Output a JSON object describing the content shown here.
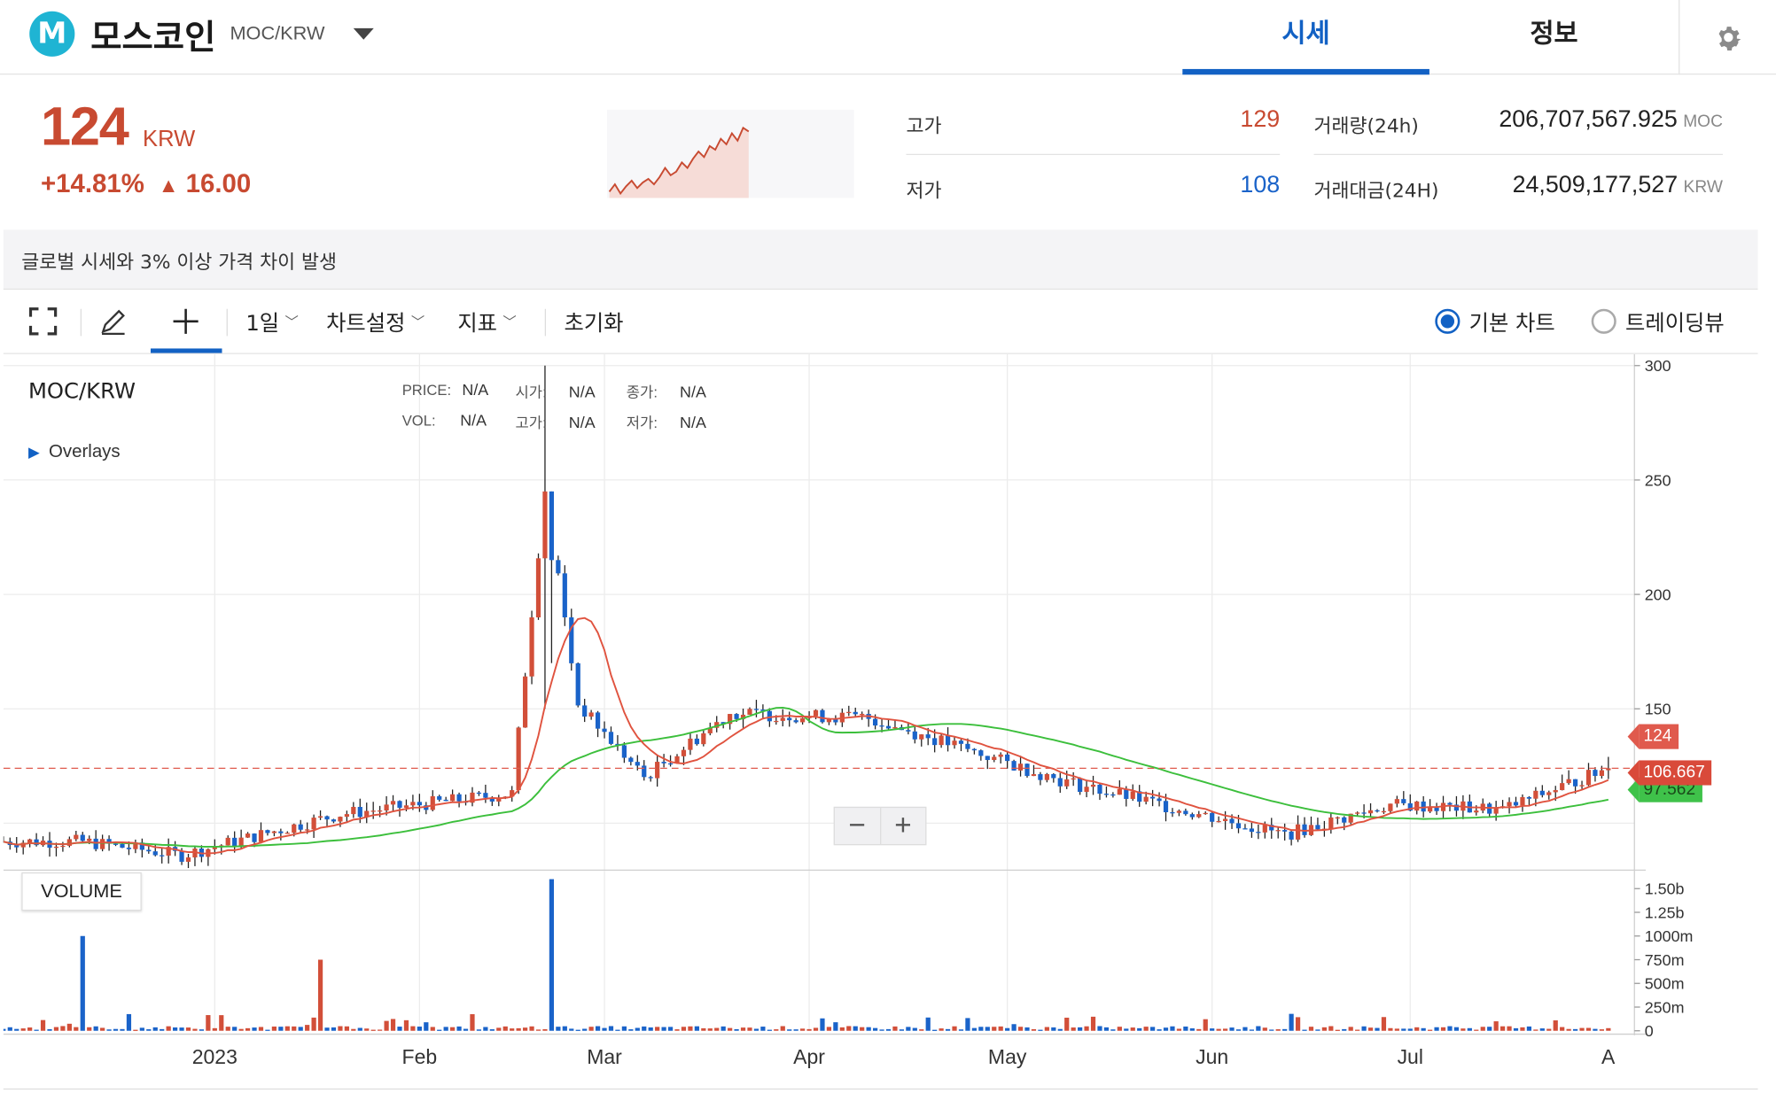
{
  "header": {
    "logo_letter": "M",
    "coin_name": "모스코인",
    "pair": "MOC/KRW",
    "tabs": [
      {
        "label": "시세",
        "active": true
      },
      {
        "label": "정보",
        "active": false
      }
    ]
  },
  "summary": {
    "price": "124",
    "price_unit": "KRW",
    "change_pct": "+14.81%",
    "change_arrow": "▲",
    "change_amount": "16.00",
    "high_label": "고가",
    "high_value": "129",
    "low_label": "저가",
    "low_value": "108",
    "volume_label": "거래량(24h)",
    "volume_value": "206,707,567.925",
    "volume_unit": "MOC",
    "amount_label": "거래대금(24H)",
    "amount_value": "24,509,177,527",
    "amount_unit": "KRW",
    "notice": "글로벌 시세와 3% 이상 가격 차이 발생",
    "sparkline": [
      105,
      109,
      104,
      108,
      111,
      107,
      110,
      112,
      109,
      113,
      118,
      114,
      116,
      121,
      118,
      123,
      127,
      124,
      130,
      128,
      134,
      131,
      137,
      133,
      140,
      138
    ]
  },
  "toolbar": {
    "interval": "1일",
    "chart_settings": "차트설정",
    "indicators": "지표",
    "reset": "초기화",
    "mode_basic": "기본 차트",
    "mode_tv": "트레이딩뷰",
    "selected_mode": "basic"
  },
  "chart": {
    "pair_label": "MOC/KRW",
    "overlays_label": "Overlays",
    "ohlc": {
      "price_key": "PRICE:",
      "price": "N/A",
      "open_key": "시가:",
      "open": "N/A",
      "close_key": "종가:",
      "close": "N/A",
      "vol_key": "VOL:",
      "vol": "N/A",
      "high_key": "고가:",
      "high": "N/A",
      "low_key": "저가:",
      "low": "N/A"
    },
    "volume_label": "VOLUME",
    "zoom_out": "−",
    "zoom_in": "+",
    "price_tags": {
      "last": "124",
      "ma_short": "106.667",
      "ma_long": "97.562"
    },
    "colors": {
      "up": "#d24f39",
      "down": "#1a63c9",
      "ma_short": "#e0533f",
      "ma_long": "#3cbf3c",
      "accent": "#1261c4"
    }
  },
  "chart_data": {
    "type": "candlestick",
    "price_axis": {
      "ticks": [
        300,
        250,
        200,
        150
      ],
      "range": [
        80,
        305
      ]
    },
    "volume_axis": {
      "ticks": [
        "1.50b",
        "1.25b",
        "1000m",
        "750m",
        "500m",
        "250m",
        "0"
      ],
      "range": [
        0,
        1600000000
      ]
    },
    "x_axis": {
      "labels": [
        "2023",
        "Feb",
        "Mar",
        "Apr",
        "May",
        "Jun",
        "Jul",
        "A"
      ]
    },
    "last_price": 124,
    "key_points": [
      {
        "date": "2022-12-12",
        "close": 92
      },
      {
        "date": "2022-12-27",
        "close": 86
      },
      {
        "date": "2023-01-20",
        "close": 104
      },
      {
        "date": "2023-02-15",
        "close": 113
      },
      {
        "date": "2023-02-20",
        "high": 300,
        "close": 245
      },
      {
        "date": "2023-02-25",
        "close": 152
      },
      {
        "date": "2023-03-07",
        "close": 120
      },
      {
        "date": "2023-03-20",
        "close": 148
      },
      {
        "date": "2023-04-10",
        "close": 146
      },
      {
        "date": "2023-05-10",
        "close": 118
      },
      {
        "date": "2023-06-12",
        "close": 95
      },
      {
        "date": "2023-06-28",
        "close": 108
      },
      {
        "date": "2023-07-15",
        "close": 106
      },
      {
        "date": "2023-07-31",
        "close": 124
      }
    ],
    "ma_short_last": 106.667,
    "ma_long_last": 97.562,
    "volume_peaks": [
      {
        "date": "2022-12-12",
        "value": 1000000000
      },
      {
        "date": "2023-01-17",
        "value": 750000000
      },
      {
        "date": "2023-02-21",
        "value": 1600000000
      }
    ]
  }
}
